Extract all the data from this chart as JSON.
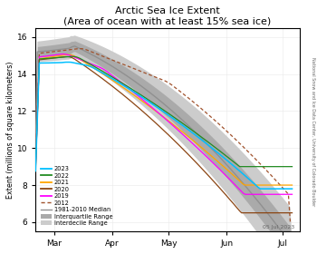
{
  "title": "Arctic Sea Ice Extent",
  "subtitle": "(Area of ocean with at least 15% sea ice)",
  "ylabel": "Extent (millions of square kilometers)",
  "xlabel_ticks": [
    "Mar",
    "Apr",
    "May",
    "Jun",
    "Jul"
  ],
  "xlabel_tick_days": [
    59,
    90,
    120,
    151,
    181
  ],
  "date_label": "05 Jul 2023",
  "credit": "National Snow and Ice Data Center, University of Colorado Boulder",
  "ylim": [
    5.5,
    16.5
  ],
  "xlim": [
    49,
    190
  ],
  "colors": {
    "2023": "#00BFFF",
    "2022": "#228B22",
    "2021": "#FFA500",
    "2020": "#8B4513",
    "2019": "#FF00FF",
    "2012": "#A0522D",
    "median": "#909090",
    "iqr": "#AAAAAA",
    "idr": "#CCCCCC"
  },
  "background": "#FFFFFF"
}
